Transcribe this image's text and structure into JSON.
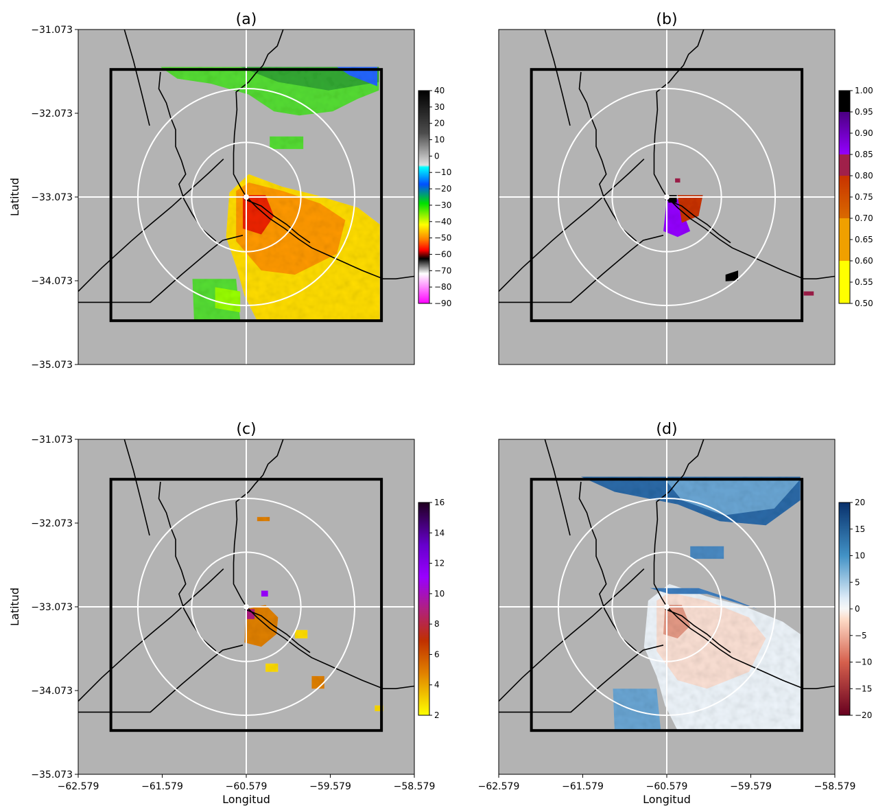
{
  "chart_data": {
    "type": "heatmap",
    "panels": [
      {
        "label": "(a)",
        "show_ylabel": true,
        "show_xticks": false,
        "blob_style": "a",
        "colorbar": {
          "ticks": [
            "40",
            "30",
            "20",
            "10",
            "0",
            "−10",
            "−20",
            "−30",
            "−40",
            "−50",
            "−60",
            "−70",
            "−80",
            "−90"
          ],
          "ramp": "a"
        }
      },
      {
        "label": "(b)",
        "show_ylabel": false,
        "show_xticks": false,
        "blob_style": "b",
        "colorbar": {
          "ticks": [
            "1.00",
            "0.95",
            "0.90",
            "0.85",
            "0.80",
            "0.75",
            "0.70",
            "0.65",
            "0.60",
            "0.55",
            "0.50"
          ],
          "ramp": "b"
        }
      },
      {
        "label": "(c)",
        "show_ylabel": true,
        "show_xticks": true,
        "blob_style": "c",
        "colorbar": {
          "ticks": [
            "16",
            "14",
            "12",
            "10",
            "8",
            "6",
            "4",
            "2"
          ],
          "ramp": "c"
        }
      },
      {
        "label": "(d)",
        "show_ylabel": false,
        "show_xticks": true,
        "blob_style": "d",
        "colorbar": {
          "ticks": [
            "20",
            "15",
            "10",
            "5",
            "0",
            "−5",
            "−10",
            "−15",
            "−20"
          ],
          "ramp": "d"
        }
      }
    ],
    "x_ticks": [
      "−62.579",
      "−61.579",
      "−60.579",
      "−59.579",
      "−58.579"
    ],
    "y_ticks": [
      "−31.073",
      "−32.073",
      "−33.073",
      "−34.073",
      "−35.073"
    ],
    "xlim": [
      -62.579,
      -58.579
    ],
    "ylim": [
      -35.073,
      -31.073
    ],
    "xlabel": "Longitud",
    "ylabel": "Latitud",
    "radar_center": [
      -60.579,
      -33.073
    ],
    "ring_radii_deg": [
      0.65,
      1.29
    ],
    "domain_box": {
      "lon": [
        -62.19,
        -58.97
      ],
      "lat": [
        -34.55,
        -31.55
      ]
    },
    "colors": {
      "background": "#b3b3b3",
      "rings": "#ffffff",
      "borders": "#000000"
    }
  }
}
